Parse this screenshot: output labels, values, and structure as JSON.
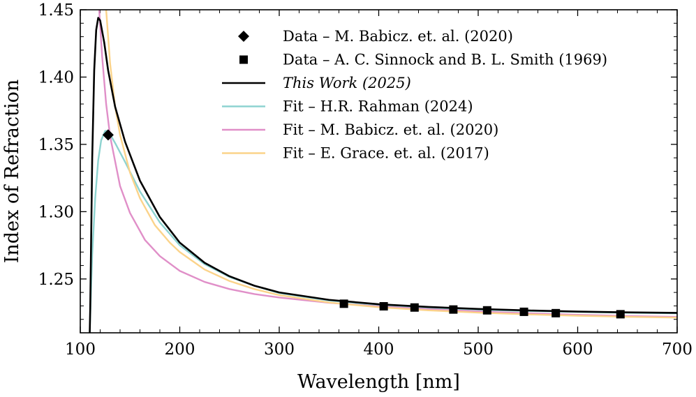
{
  "chart_data": {
    "type": "line",
    "xlabel": "Wavelength [nm]",
    "ylabel": "Index of Refraction",
    "xlim": [
      100,
      700
    ],
    "ylim": [
      1.21,
      1.45
    ],
    "x_ticks": [
      100,
      200,
      300,
      400,
      500,
      600,
      700
    ],
    "x_tick_labels": [
      "100",
      "200",
      "300",
      "400",
      "500",
      "600",
      "700"
    ],
    "y_ticks": [
      1.25,
      1.3,
      1.35,
      1.4,
      1.45
    ],
    "y_tick_labels": [
      "1.25",
      "1.30",
      "1.35",
      "1.40",
      "1.45"
    ],
    "grid": false,
    "legend_position": "top-right",
    "series": [
      {
        "name": "Data – M. Babicz. et. al. (2020)",
        "kind": "scatter",
        "marker": "diamond",
        "color": "#000000",
        "points": [
          [
            128,
            1.357
          ]
        ]
      },
      {
        "name": "Data – A. C. Sinnock and B. L. Smith (1969)",
        "kind": "scatter",
        "marker": "square",
        "color": "#000000",
        "points": [
          [
            365,
            1.2316
          ],
          [
            405,
            1.2297
          ],
          [
            436,
            1.2288
          ],
          [
            475,
            1.2273
          ],
          [
            509,
            1.2267
          ],
          [
            546,
            1.2256
          ],
          [
            578,
            1.2246
          ],
          [
            643,
            1.2238
          ]
        ]
      },
      {
        "name": "This Work (2025)",
        "kind": "line",
        "color": "#000000",
        "italic": true,
        "points": [
          [
            109.5,
            1.21
          ],
          [
            110,
            1.228
          ],
          [
            112,
            1.34
          ],
          [
            114,
            1.405
          ],
          [
            116,
            1.435
          ],
          [
            118,
            1.444
          ],
          [
            120,
            1.442
          ],
          [
            124,
            1.426
          ],
          [
            128,
            1.405
          ],
          [
            135,
            1.378
          ],
          [
            145,
            1.352
          ],
          [
            160,
            1.323
          ],
          [
            180,
            1.296
          ],
          [
            200,
            1.277
          ],
          [
            225,
            1.262
          ],
          [
            250,
            1.252
          ],
          [
            275,
            1.245
          ],
          [
            300,
            1.24
          ],
          [
            350,
            1.2345
          ],
          [
            400,
            1.2312
          ],
          [
            450,
            1.2292
          ],
          [
            500,
            1.2277
          ],
          [
            550,
            1.2266
          ],
          [
            600,
            1.2258
          ],
          [
            650,
            1.2252
          ],
          [
            700,
            1.2248
          ]
        ]
      },
      {
        "name": "Fit – H.R. Rahman (2024)",
        "kind": "line",
        "color": "#8dd3d0",
        "points": [
          [
            109.5,
            1.21
          ],
          [
            110,
            1.222
          ],
          [
            112,
            1.268
          ],
          [
            115,
            1.31
          ],
          [
            118,
            1.338
          ],
          [
            121,
            1.353
          ],
          [
            125,
            1.36
          ],
          [
            128,
            1.36
          ],
          [
            135,
            1.351
          ],
          [
            145,
            1.337
          ],
          [
            160,
            1.315
          ],
          [
            180,
            1.292
          ],
          [
            200,
            1.275
          ],
          [
            225,
            1.261
          ],
          [
            250,
            1.2515
          ],
          [
            275,
            1.245
          ],
          [
            300,
            1.2395
          ],
          [
            350,
            1.234
          ],
          [
            400,
            1.2307
          ],
          [
            450,
            1.2286
          ],
          [
            500,
            1.2272
          ],
          [
            550,
            1.2262
          ],
          [
            600,
            1.2255
          ],
          [
            650,
            1.2249
          ],
          [
            700,
            1.2245
          ]
        ]
      },
      {
        "name": "Fit – M. Babicz. et. al. (2020)",
        "kind": "line",
        "color": "#e08fc8",
        "points": [
          [
            119,
            1.45
          ],
          [
            122,
            1.415
          ],
          [
            126,
            1.38
          ],
          [
            130,
            1.356
          ],
          [
            140,
            1.319
          ],
          [
            150,
            1.299
          ],
          [
            165,
            1.279
          ],
          [
            180,
            1.267
          ],
          [
            200,
            1.256
          ],
          [
            225,
            1.2478
          ],
          [
            250,
            1.2425
          ],
          [
            275,
            1.2388
          ],
          [
            300,
            1.2362
          ],
          [
            350,
            1.2323
          ],
          [
            400,
            1.2296
          ],
          [
            450,
            1.2275
          ],
          [
            500,
            1.2259
          ],
          [
            550,
            1.2245
          ],
          [
            600,
            1.2234
          ],
          [
            650,
            1.2225
          ],
          [
            700,
            1.2218
          ]
        ]
      },
      {
        "name": "Fit – E. Grace. et. al. (2017)",
        "kind": "line",
        "color": "#fbd38a",
        "points": [
          [
            126,
            1.45
          ],
          [
            130,
            1.41
          ],
          [
            135,
            1.378
          ],
          [
            140,
            1.357
          ],
          [
            150,
            1.329
          ],
          [
            160,
            1.31
          ],
          [
            175,
            1.29
          ],
          [
            190,
            1.277
          ],
          [
            200,
            1.27
          ],
          [
            225,
            1.257
          ],
          [
            250,
            1.2485
          ],
          [
            275,
            1.2425
          ],
          [
            300,
            1.238
          ],
          [
            350,
            1.2325
          ],
          [
            400,
            1.229
          ],
          [
            450,
            1.2267
          ],
          [
            500,
            1.225
          ],
          [
            550,
            1.2237
          ],
          [
            600,
            1.2227
          ],
          [
            650,
            1.2219
          ],
          [
            700,
            1.2213
          ]
        ]
      }
    ]
  }
}
